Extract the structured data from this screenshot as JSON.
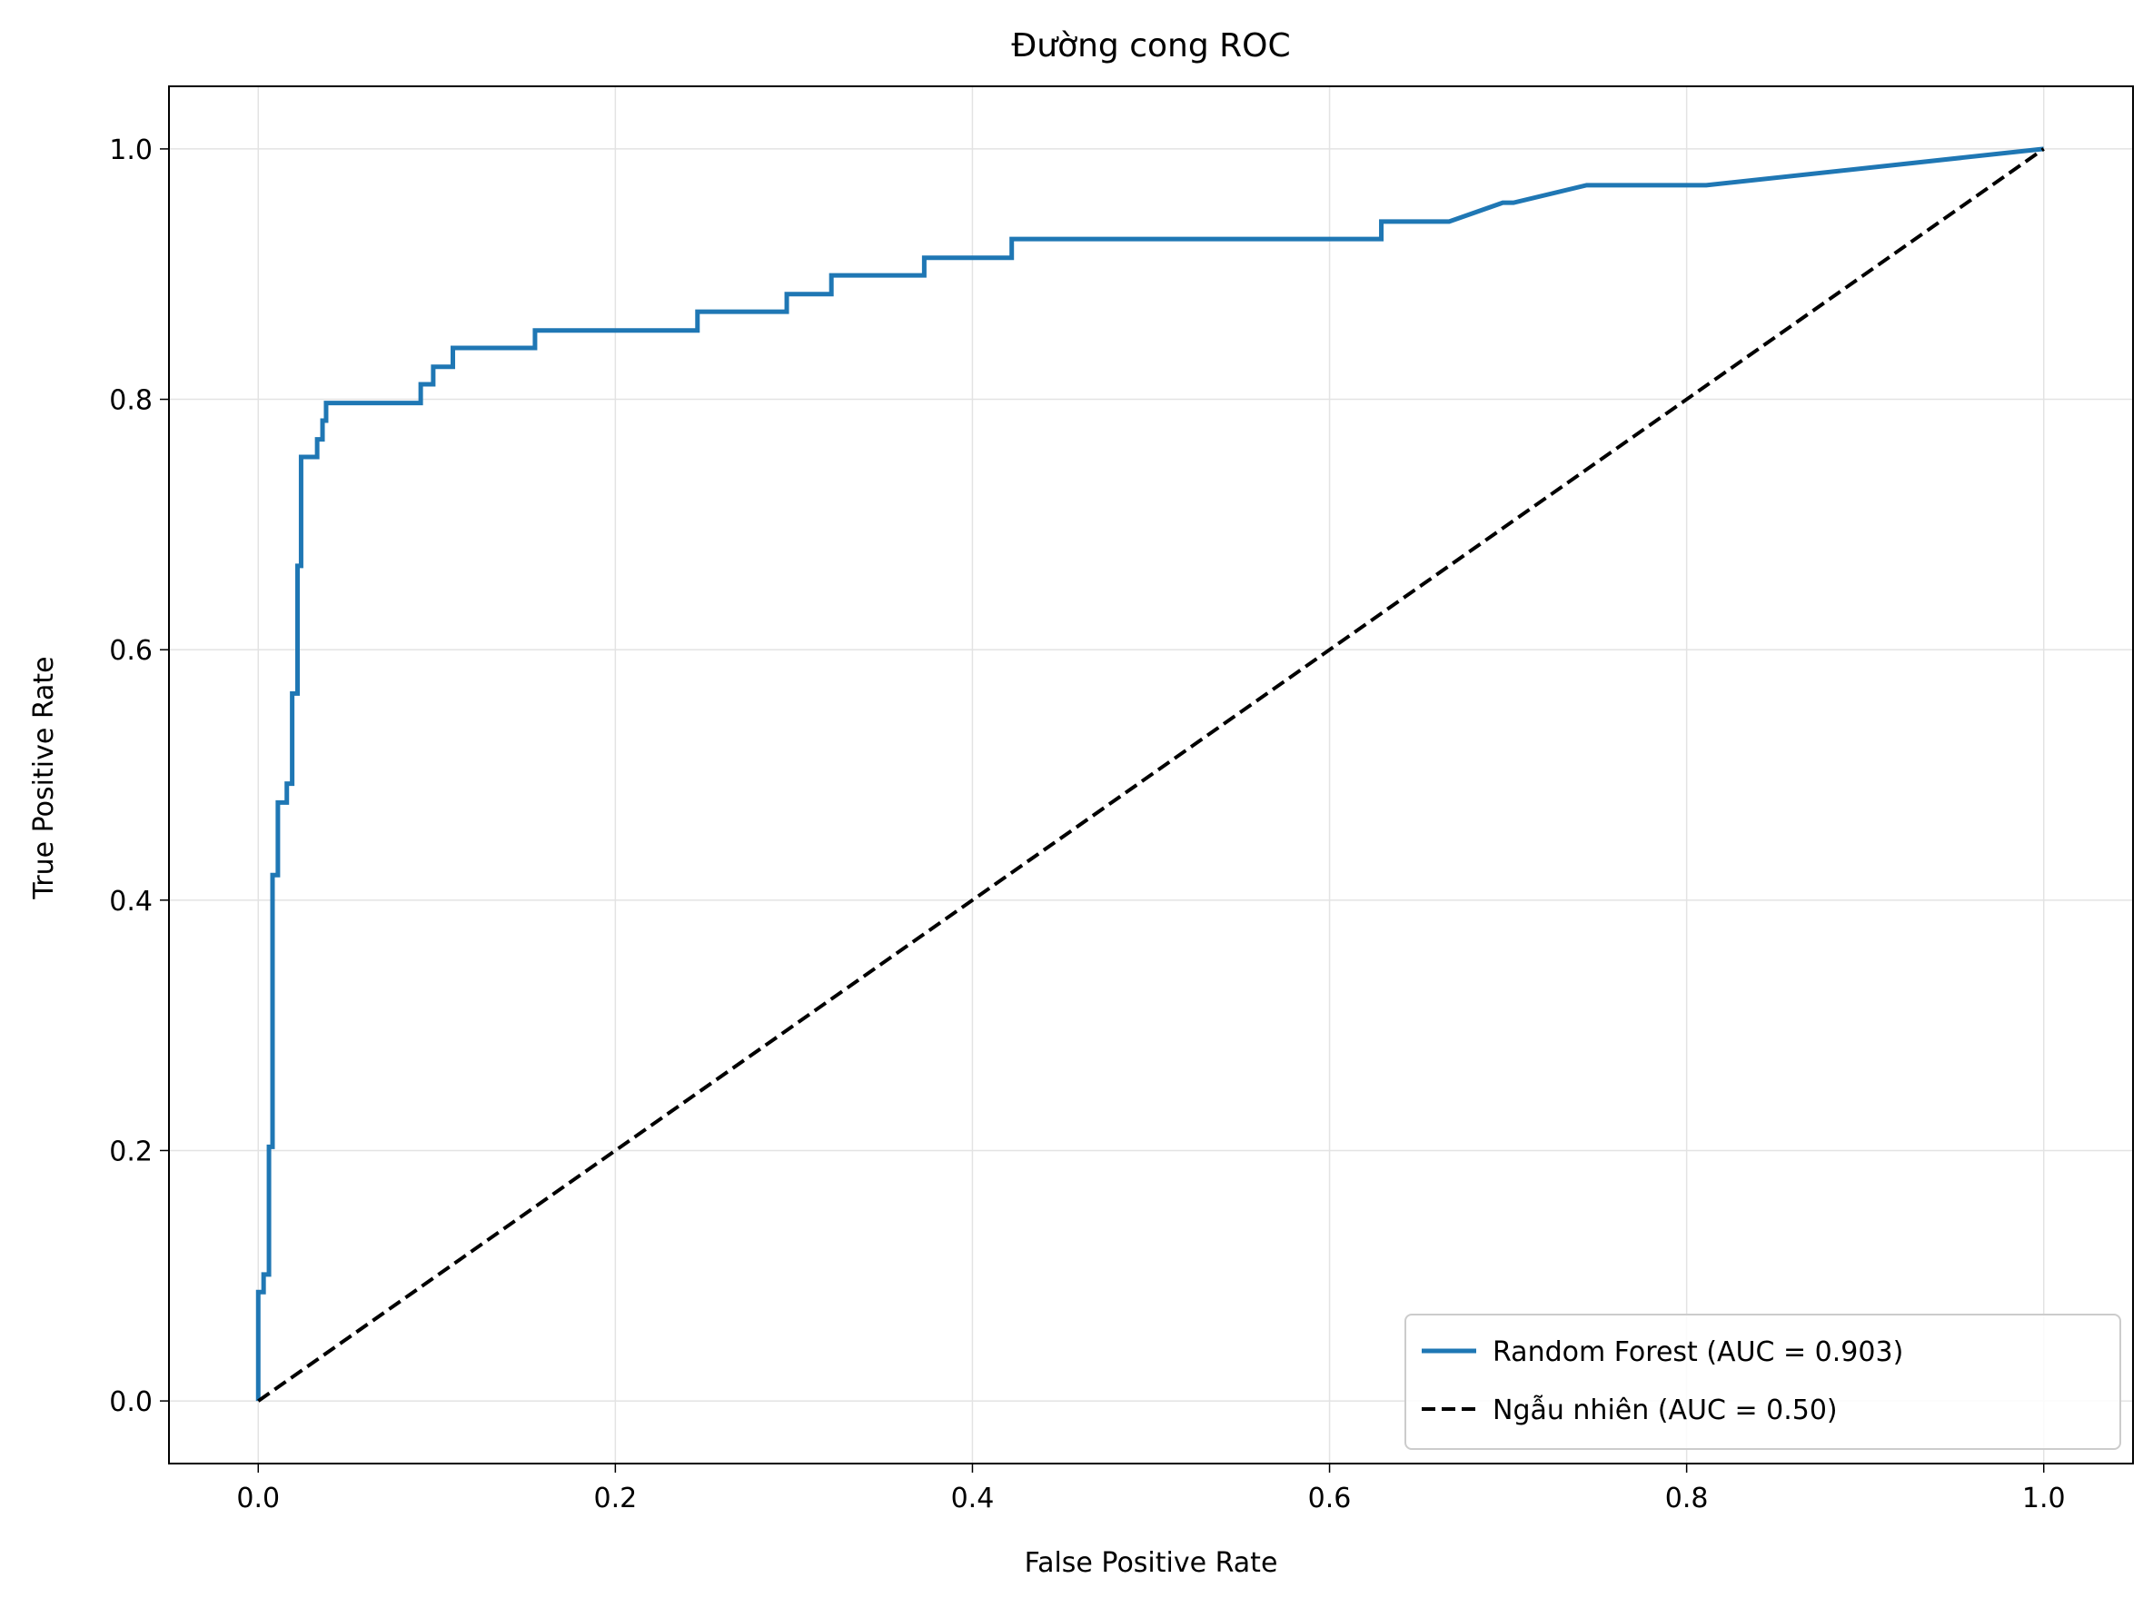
{
  "chart_data": {
    "type": "line",
    "title": "Đường cong ROC",
    "xlabel": "False Positive Rate",
    "ylabel": "True Positive Rate",
    "xlim": [
      -0.05,
      1.05
    ],
    "ylim": [
      -0.05,
      1.05
    ],
    "xticks": [
      0.0,
      0.2,
      0.4,
      0.6,
      0.8,
      1.0
    ],
    "xtick_labels": [
      "0.0",
      "0.2",
      "0.4",
      "0.6",
      "0.8",
      "1.0"
    ],
    "yticks": [
      0.0,
      0.2,
      0.4,
      0.6,
      0.8,
      1.0
    ],
    "ytick_labels": [
      "0.0",
      "0.2",
      "0.4",
      "0.6",
      "0.8",
      "1.0"
    ],
    "grid": true,
    "legend_position": "bottom-right",
    "series": [
      {
        "name": "Random Forest (AUC = 0.903)",
        "color": "#1f77b4",
        "style": "solid",
        "x": [
          0.0,
          0.0,
          0.0,
          0.003,
          0.003,
          0.006,
          0.006,
          0.008,
          0.008,
          0.011,
          0.011,
          0.016,
          0.016,
          0.019,
          0.019,
          0.022,
          0.022,
          0.024,
          0.024,
          0.033,
          0.033,
          0.036,
          0.036,
          0.038,
          0.038,
          0.091,
          0.091,
          0.098,
          0.098,
          0.109,
          0.109,
          0.155,
          0.155,
          0.246,
          0.246,
          0.296,
          0.296,
          0.321,
          0.321,
          0.373,
          0.373,
          0.422,
          0.422,
          0.629,
          0.629,
          0.667,
          0.697,
          0.703,
          0.744,
          0.811,
          1.0
        ],
        "y": [
          0.0,
          0.0,
          0.087,
          0.087,
          0.101,
          0.101,
          0.203,
          0.203,
          0.42,
          0.42,
          0.478,
          0.478,
          0.493,
          0.493,
          0.565,
          0.565,
          0.667,
          0.667,
          0.754,
          0.754,
          0.768,
          0.768,
          0.783,
          0.783,
          0.797,
          0.797,
          0.812,
          0.812,
          0.826,
          0.826,
          0.841,
          0.841,
          0.855,
          0.855,
          0.87,
          0.87,
          0.884,
          0.884,
          0.899,
          0.899,
          0.913,
          0.913,
          0.928,
          0.928,
          0.942,
          0.942,
          0.957,
          0.957,
          0.971,
          0.971,
          1.0
        ]
      },
      {
        "name": "Ngẫu nhiên (AUC = 0.50)",
        "color": "#000000",
        "style": "dashed",
        "x": [
          0.0,
          1.0
        ],
        "y": [
          0.0,
          1.0
        ]
      }
    ]
  }
}
